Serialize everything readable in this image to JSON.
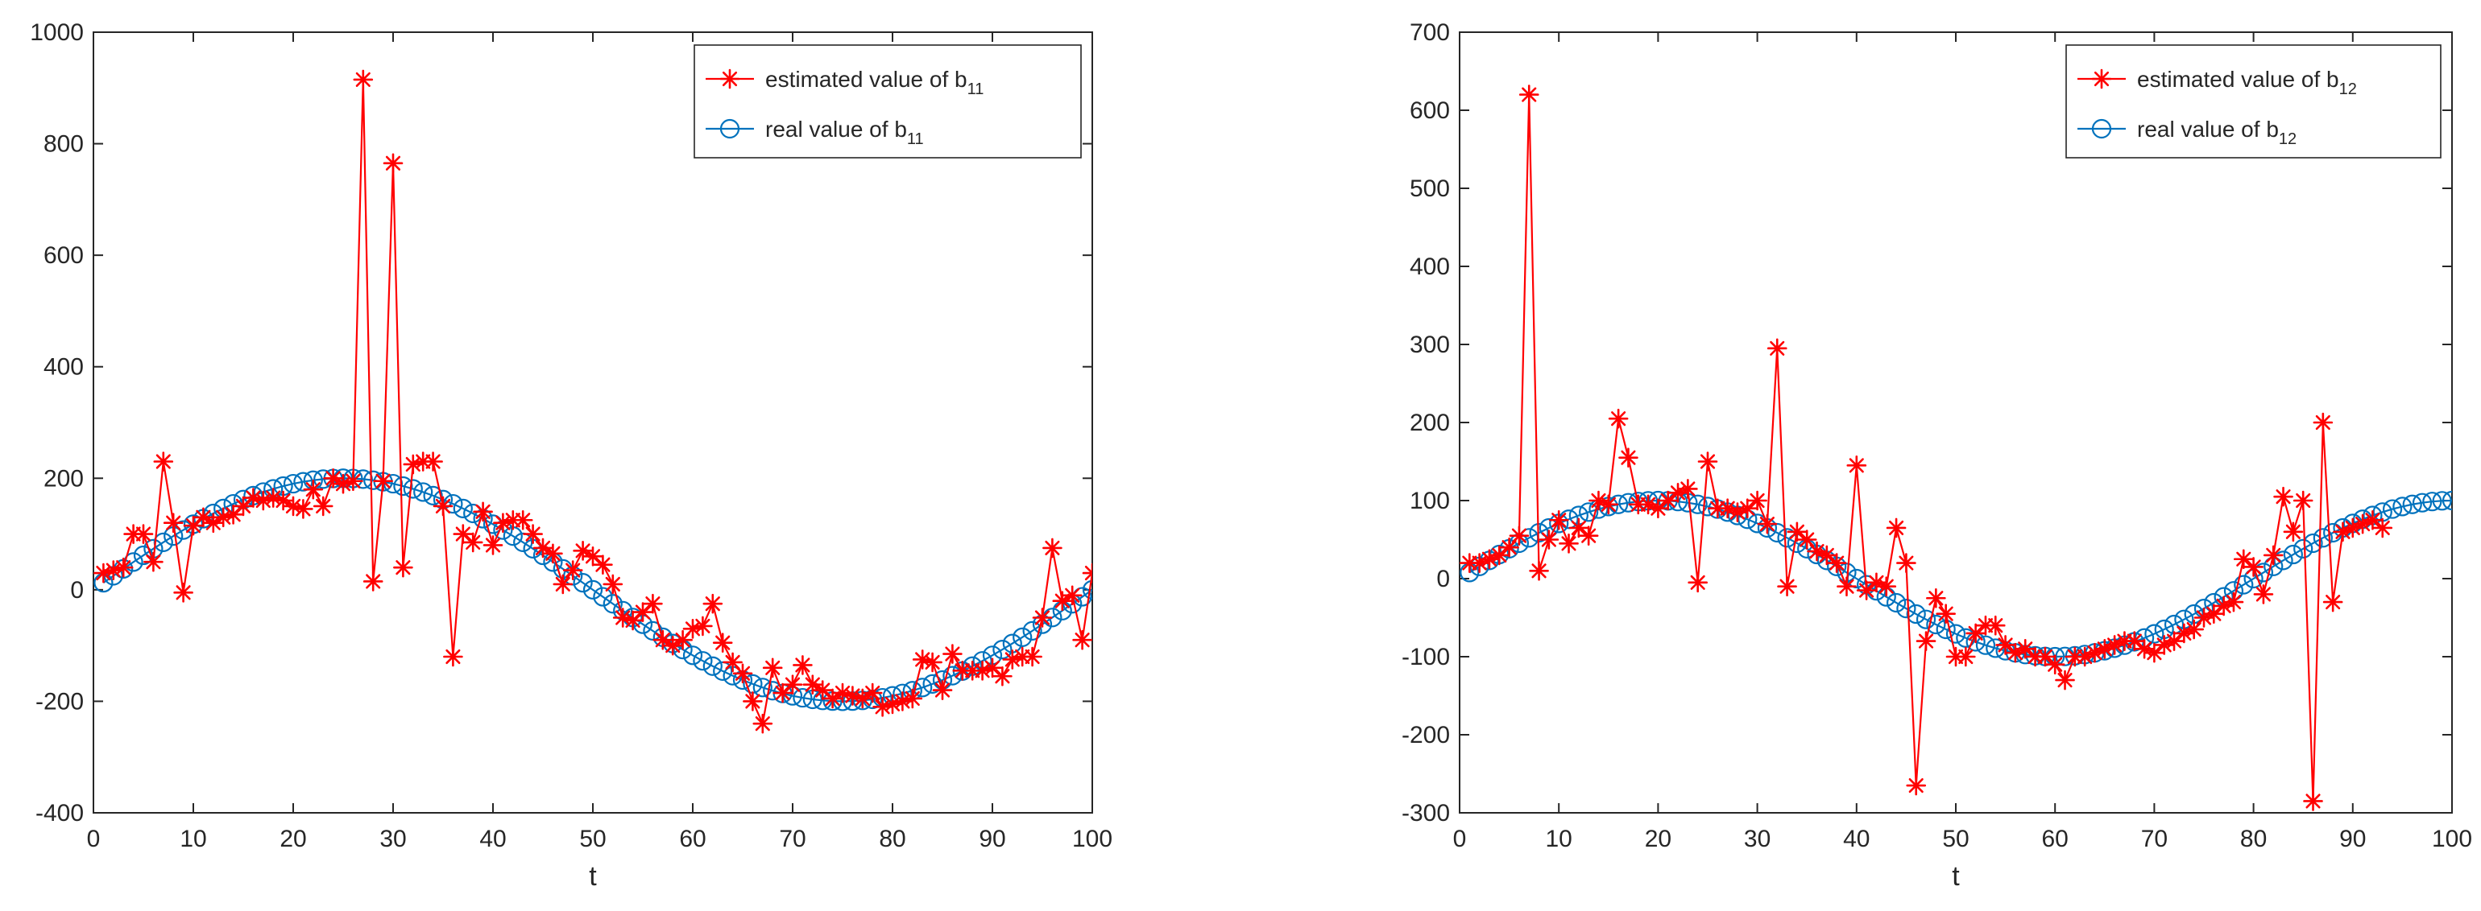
{
  "chart_data": [
    {
      "type": "line",
      "xlabel": "t",
      "ylabel": "",
      "xlim": [
        0,
        100
      ],
      "ylim": [
        -400,
        1000
      ],
      "xticks": [
        0,
        10,
        20,
        30,
        40,
        50,
        60,
        70,
        80,
        90,
        100
      ],
      "yticks": [
        -400,
        -200,
        0,
        200,
        400,
        600,
        800,
        1000
      ],
      "legend_position": "top-right",
      "legend": {
        "estimated": {
          "text": "estimated value of b",
          "sub": "11"
        },
        "real": {
          "text": "real value of b",
          "sub": "11"
        }
      },
      "series": [
        {
          "name": "estimated value of b11",
          "color": "#ff0000",
          "marker": "asterisk",
          "x": [
            1,
            2,
            3,
            4,
            5,
            6,
            7,
            8,
            9,
            10,
            11,
            12,
            13,
            14,
            15,
            16,
            17,
            18,
            19,
            20,
            21,
            22,
            23,
            24,
            25,
            26,
            27,
            28,
            29,
            30,
            31,
            32,
            33,
            34,
            35,
            36,
            37,
            38,
            39,
            40,
            41,
            42,
            43,
            44,
            45,
            46,
            47,
            48,
            49,
            50,
            51,
            52,
            53,
            54,
            55,
            56,
            57,
            58,
            59,
            60,
            61,
            62,
            63,
            64,
            65,
            66,
            67,
            68,
            69,
            70,
            71,
            72,
            73,
            74,
            75,
            76,
            77,
            78,
            79,
            80,
            81,
            82,
            83,
            84,
            85,
            86,
            87,
            88,
            89,
            90,
            91,
            92,
            93,
            94,
            95,
            96,
            97,
            98,
            99,
            100
          ],
          "values": [
            30,
            35,
            40,
            100,
            100,
            50,
            230,
            120,
            -5,
            115,
            130,
            120,
            130,
            135,
            150,
            165,
            160,
            165,
            160,
            150,
            145,
            180,
            150,
            200,
            190,
            195,
            915,
            15,
            195,
            765,
            40,
            225,
            230,
            230,
            150,
            -120,
            100,
            85,
            140,
            80,
            120,
            125,
            125,
            100,
            75,
            65,
            10,
            35,
            70,
            60,
            45,
            10,
            -50,
            -55,
            -40,
            -25,
            -90,
            -100,
            -90,
            -70,
            -65,
            -25,
            -95,
            -130,
            -150,
            -200,
            -240,
            -140,
            -185,
            -170,
            -135,
            -170,
            -180,
            -195,
            -185,
            -190,
            -195,
            -185,
            -210,
            -205,
            -200,
            -195,
            -125,
            -130,
            -180,
            -115,
            -145,
            -145,
            -145,
            -140,
            -155,
            -125,
            -120,
            -120,
            -50,
            75,
            -20,
            -10,
            -90,
            30
          ]
        },
        {
          "name": "real value of b11",
          "color": "#0072bd",
          "marker": "circle",
          "function": "200*sin(2*pi*t/100)",
          "x_range": [
            1,
            100
          ]
        }
      ]
    },
    {
      "type": "line",
      "xlabel": "t",
      "ylabel": "",
      "xlim": [
        0,
        100
      ],
      "ylim": [
        -300,
        700
      ],
      "xticks": [
        0,
        10,
        20,
        30,
        40,
        50,
        60,
        70,
        80,
        90,
        100
      ],
      "yticks": [
        -300,
        -200,
        -100,
        0,
        100,
        200,
        300,
        400,
        500,
        600,
        700
      ],
      "legend_position": "top-right",
      "legend": {
        "estimated": {
          "text": "estimated value of b",
          "sub": "12"
        },
        "real": {
          "text": "real value of b",
          "sub": "12"
        }
      },
      "series": [
        {
          "name": "estimated value of b12",
          "color": "#ff0000",
          "marker": "asterisk",
          "x": [
            1,
            2,
            3,
            4,
            5,
            6,
            7,
            8,
            9,
            10,
            11,
            12,
            13,
            14,
            15,
            16,
            17,
            18,
            19,
            20,
            21,
            22,
            23,
            24,
            25,
            26,
            27,
            28,
            29,
            30,
            31,
            32,
            33,
            34,
            35,
            36,
            37,
            38,
            39,
            40,
            41,
            42,
            43,
            44,
            45,
            46,
            47,
            48,
            49,
            50,
            51,
            52,
            53,
            54,
            55,
            56,
            57,
            58,
            59,
            60,
            61,
            62,
            63,
            64,
            65,
            66,
            67,
            68,
            69,
            70,
            71,
            72,
            73,
            74,
            75,
            76,
            77,
            78,
            79,
            80,
            81,
            82,
            83,
            84,
            85,
            86,
            87,
            88,
            89,
            90,
            91,
            92,
            93
          ],
          "values": [
            20,
            20,
            25,
            30,
            40,
            55,
            620,
            10,
            50,
            75,
            45,
            65,
            55,
            100,
            95,
            205,
            155,
            95,
            95,
            90,
            100,
            110,
            115,
            -5,
            150,
            90,
            90,
            85,
            90,
            100,
            70,
            295,
            -10,
            60,
            50,
            35,
            30,
            20,
            -10,
            145,
            -15,
            -5,
            -10,
            65,
            20,
            -265,
            -80,
            -25,
            -45,
            -100,
            -100,
            -70,
            -60,
            -60,
            -85,
            -95,
            -90,
            -100,
            -100,
            -110,
            -130,
            -100,
            -100,
            -95,
            -90,
            -85,
            -80,
            -80,
            -90,
            -95,
            -85,
            -80,
            -70,
            -65,
            -50,
            -45,
            -35,
            -30,
            25,
            15,
            -20,
            30,
            105,
            60,
            100,
            -285,
            200,
            -30,
            60,
            65,
            70,
            75,
            65
          ]
        },
        {
          "name": "real value of b12",
          "color": "#0072bd",
          "marker": "circle",
          "function": "100*sin(2*pi*t/80)",
          "x_range": [
            1,
            100
          ]
        }
      ]
    }
  ]
}
